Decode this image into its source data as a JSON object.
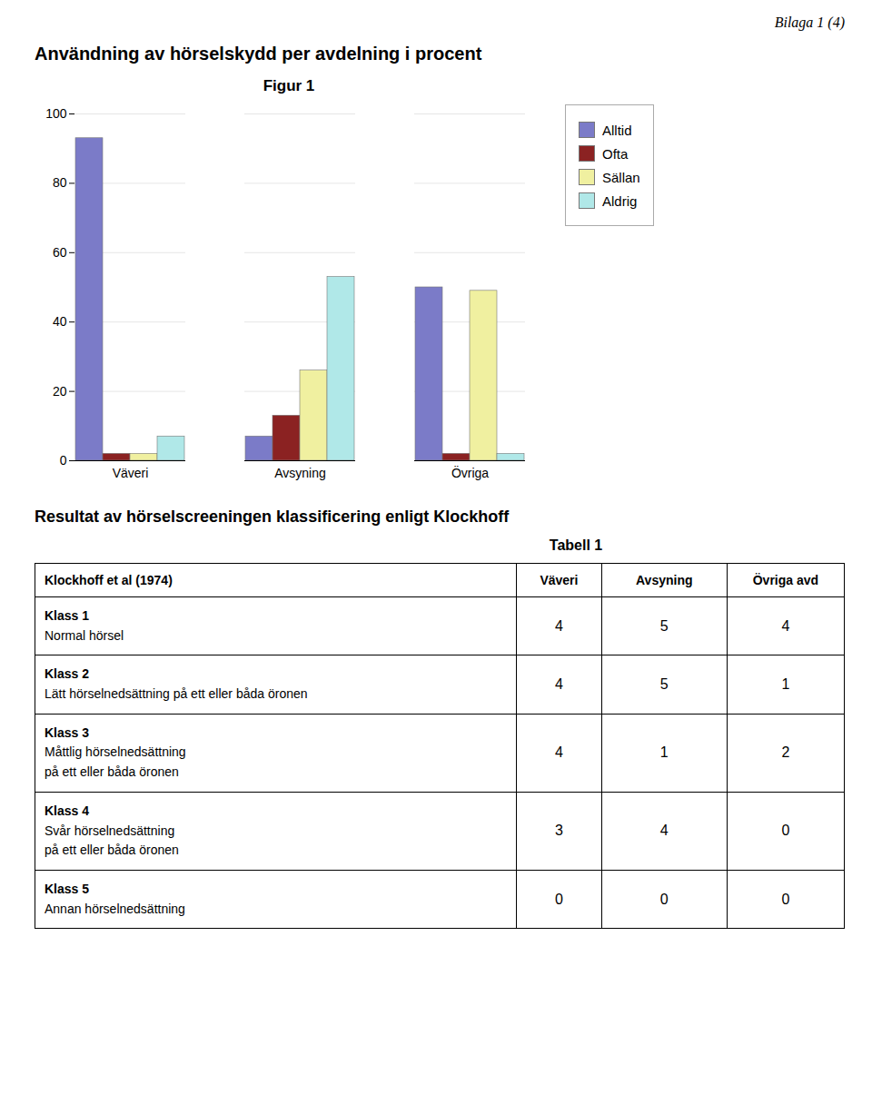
{
  "chart_data": [
    {
      "type": "bar",
      "title": "Användning av hörselskydd per avdelning i procent",
      "subtitle": "Figur 1",
      "annotations": [
        "Bilaga 1 (4)"
      ],
      "categories": [
        "Väveri",
        "Avsyning",
        "Övriga"
      ],
      "series": [
        {
          "name": "Alltid",
          "color": "#7b7bc8",
          "values": [
            93,
            7,
            50
          ]
        },
        {
          "name": "Ofta",
          "color": "#8b2222",
          "values": [
            2,
            13,
            2
          ]
        },
        {
          "name": "Sällan",
          "color": "#f0f0a0",
          "values": [
            2,
            26,
            49
          ]
        },
        {
          "name": "Aldrig",
          "color": "#b0e8e8",
          "values": [
            7,
            53,
            2
          ]
        }
      ],
      "ylim": [
        0,
        100
      ],
      "yticks": [
        0,
        20,
        40,
        60,
        80,
        100
      ],
      "grid": true,
      "legend": "right"
    },
    {
      "type": "table",
      "title": "Resultat av hörselscreeningen klassificering enligt Klockhoff",
      "subtitle": "Tabell 1",
      "columns": [
        "Klockhoff et al (1974)",
        "Väveri",
        "Avsyning",
        "Övriga avd"
      ],
      "rows": [
        [
          "Klass 1\nNormal hörsel",
          "4",
          "5",
          "4"
        ],
        [
          "Klass 2\nLätt hörselnedsättning på ett eller båda öronen",
          "4",
          "5",
          "1"
        ],
        [
          "Klass 3\nMåttlig hörselnedsättning\npå ett eller båda öronen",
          "4",
          "1",
          "2"
        ],
        [
          "Klass 4\nSvår hörselnedsättning\npå ett eller båda öronen",
          "3",
          "4",
          "0"
        ],
        [
          "Klass 5\nAnnan hörselnedsättning",
          "0",
          "0",
          "0"
        ]
      ]
    }
  ]
}
